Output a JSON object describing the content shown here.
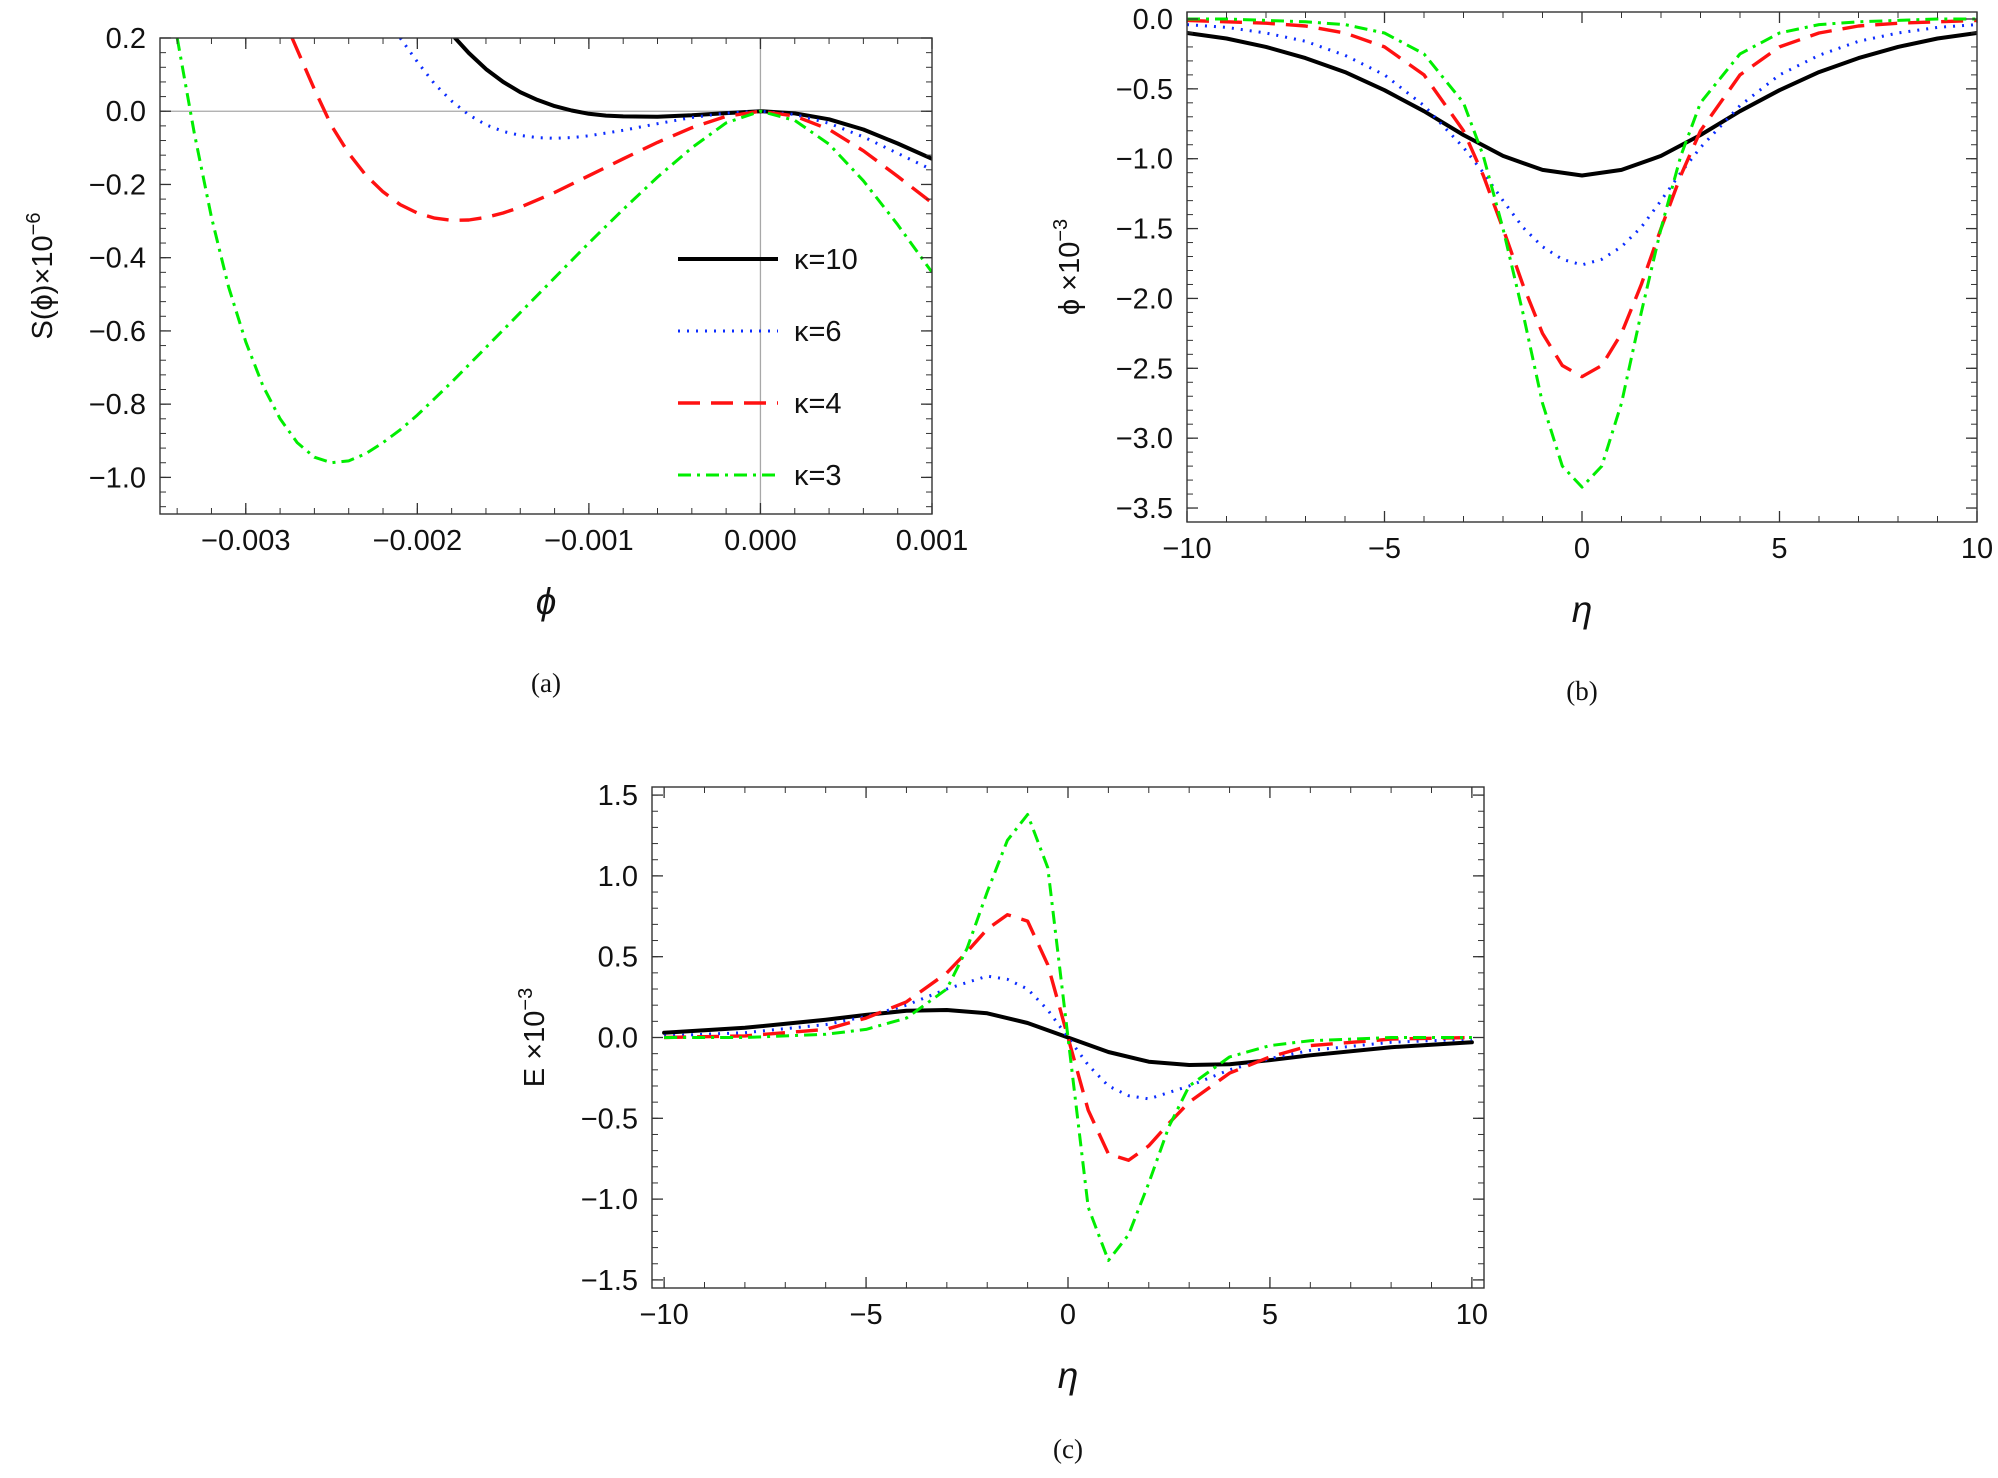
{
  "styles": {
    "10": {
      "color": "#000000",
      "dash": "",
      "width": 4
    },
    "6": {
      "color": "#0b2cff",
      "dash": "2 7",
      "width": 3
    },
    "4": {
      "color": "#ff1111",
      "dash": "22 11",
      "width": 3.4
    },
    "3": {
      "color": "#00ee00",
      "dash": "13 6 3 6",
      "width": 3
    }
  },
  "chart_data": [
    {
      "id": "a",
      "type": "line",
      "caption": "(a)",
      "xlabel": "ϕ",
      "ylabel": "S(ϕ)×10",
      "ylabel_exp": "−6",
      "xlim": [
        -0.0035,
        0.001
      ],
      "ylim": [
        -1.1,
        0.2
      ],
      "xticks": [
        -0.003,
        -0.002,
        -0.001,
        0.0,
        0.001
      ],
      "xtick_labels": [
        "−0.003",
        "−0.002",
        "−0.001",
        "0.000",
        "0.001"
      ],
      "yticks": [
        0.2,
        0.0,
        -0.2,
        -0.4,
        -0.6,
        -0.8,
        -1.0
      ],
      "ytick_labels": [
        "0.2",
        "0.0",
        "−0.2",
        "−0.4",
        "−0.6",
        "−0.8",
        "−1.0"
      ],
      "zero_lines": true,
      "legend": [
        {
          "key": "10",
          "label": "κ=10"
        },
        {
          "key": "6",
          "label": "κ=6"
        },
        {
          "key": "4",
          "label": "κ=4"
        },
        {
          "key": "3",
          "label": "κ=3"
        }
      ],
      "series": [
        {
          "name": "κ=10",
          "key": "10",
          "x": [
            -0.00178,
            -0.0017,
            -0.0016,
            -0.0015,
            -0.0014,
            -0.0013,
            -0.0012,
            -0.0011,
            -0.001,
            -0.0009,
            -0.0008,
            -0.0006,
            -0.0004,
            -0.0002,
            0.0,
            0.0002,
            0.0004,
            0.0006,
            0.0008,
            0.001
          ],
          "y": [
            0.2,
            0.159,
            0.115,
            0.08,
            0.052,
            0.031,
            0.014,
            0.002,
            -0.007,
            -0.012,
            -0.014,
            -0.015,
            -0.011,
            -0.005,
            0.0,
            -0.006,
            -0.022,
            -0.05,
            -0.088,
            -0.13
          ]
        },
        {
          "name": "κ=6",
          "key": "6",
          "x": [
            -0.0021,
            -0.002,
            -0.0019,
            -0.0018,
            -0.0017,
            -0.0016,
            -0.0015,
            -0.0014,
            -0.0013,
            -0.0012,
            -0.0011,
            -0.001,
            -0.0008,
            -0.0006,
            -0.0004,
            -0.0002,
            0.0,
            0.0002,
            0.0004,
            0.0006,
            0.0008,
            0.001
          ],
          "y": [
            0.2,
            0.135,
            0.075,
            0.028,
            -0.01,
            -0.037,
            -0.055,
            -0.066,
            -0.072,
            -0.074,
            -0.072,
            -0.067,
            -0.052,
            -0.034,
            -0.017,
            -0.005,
            0.0,
            -0.009,
            -0.033,
            -0.07,
            -0.115,
            -0.16
          ]
        },
        {
          "name": "κ=4",
          "key": "4",
          "x": [
            -0.00273,
            -0.0026,
            -0.0025,
            -0.0024,
            -0.0023,
            -0.0022,
            -0.0021,
            -0.002,
            -0.0019,
            -0.0018,
            -0.0017,
            -0.0016,
            -0.0015,
            -0.0014,
            -0.0012,
            -0.001,
            -0.0008,
            -0.0006,
            -0.0004,
            -0.0002,
            0.0,
            0.0002,
            0.0004,
            0.0006,
            0.0008,
            0.001
          ],
          "y": [
            0.2,
            0.06,
            -0.04,
            -0.115,
            -0.175,
            -0.22,
            -0.255,
            -0.278,
            -0.292,
            -0.298,
            -0.297,
            -0.29,
            -0.278,
            -0.262,
            -0.222,
            -0.176,
            -0.13,
            -0.085,
            -0.045,
            -0.014,
            0.0,
            -0.013,
            -0.05,
            -0.108,
            -0.178,
            -0.25
          ]
        },
        {
          "name": "κ=3",
          "key": "3",
          "x": [
            -0.0034,
            -0.0033,
            -0.0032,
            -0.0031,
            -0.003,
            -0.0029,
            -0.0028,
            -0.0027,
            -0.0026,
            -0.0025,
            -0.0024,
            -0.0023,
            -0.0022,
            -0.0021,
            -0.002,
            -0.0019,
            -0.0018,
            -0.0016,
            -0.0014,
            -0.0012,
            -0.001,
            -0.0008,
            -0.0006,
            -0.0004,
            -0.0002,
            0.0,
            0.0002,
            0.0004,
            0.0006,
            0.0008,
            0.001
          ],
          "y": [
            0.2,
            -0.06,
            -0.29,
            -0.48,
            -0.63,
            -0.75,
            -0.84,
            -0.905,
            -0.945,
            -0.96,
            -0.955,
            -0.935,
            -0.905,
            -0.87,
            -0.83,
            -0.785,
            -0.74,
            -0.645,
            -0.55,
            -0.455,
            -0.36,
            -0.268,
            -0.18,
            -0.1,
            -0.032,
            0.0,
            -0.025,
            -0.09,
            -0.19,
            -0.31,
            -0.44
          ]
        }
      ]
    },
    {
      "id": "b",
      "type": "line",
      "caption": "(b)",
      "xlabel": "η",
      "ylabel": "ϕ ×10",
      "ylabel_exp": "−3",
      "xlim": [
        -10,
        10
      ],
      "ylim": [
        -3.6,
        0.05
      ],
      "xticks": [
        -10,
        -5,
        0,
        5,
        10
      ],
      "xtick_labels": [
        "−10",
        "−5",
        "0",
        "5",
        "10"
      ],
      "yticks": [
        0.0,
        -0.5,
        -1.0,
        -1.5,
        -2.0,
        -2.5,
        -3.0,
        -3.5
      ],
      "ytick_labels": [
        "0.0",
        "−0.5",
        "−1.0",
        "−1.5",
        "−2.0",
        "−2.5",
        "−3.0",
        "−3.5"
      ],
      "zero_lines": false,
      "series": [
        {
          "name": "κ=10",
          "key": "10",
          "x": [
            -10,
            -9,
            -8,
            -7,
            -6,
            -5,
            -4,
            -3,
            -2,
            -1,
            0,
            1,
            2,
            3,
            4,
            5,
            6,
            7,
            8,
            9,
            10
          ],
          "y": [
            -0.1,
            -0.14,
            -0.2,
            -0.28,
            -0.38,
            -0.51,
            -0.66,
            -0.83,
            -0.98,
            -1.08,
            -1.12,
            -1.08,
            -0.98,
            -0.83,
            -0.66,
            -0.51,
            -0.38,
            -0.28,
            -0.2,
            -0.14,
            -0.1
          ]
        },
        {
          "name": "κ=6",
          "key": "6",
          "x": [
            -10,
            -9,
            -8,
            -7,
            -6,
            -5,
            -4,
            -3,
            -2.5,
            -2,
            -1.5,
            -1,
            -0.5,
            0,
            0.5,
            1,
            1.5,
            2,
            2.5,
            3,
            4,
            5,
            6,
            7,
            8,
            9,
            10
          ],
          "y": [
            -0.04,
            -0.06,
            -0.1,
            -0.16,
            -0.26,
            -0.4,
            -0.62,
            -0.92,
            -1.1,
            -1.3,
            -1.49,
            -1.63,
            -1.72,
            -1.76,
            -1.72,
            -1.63,
            -1.49,
            -1.3,
            -1.1,
            -0.92,
            -0.62,
            -0.4,
            -0.26,
            -0.16,
            -0.1,
            -0.06,
            -0.04
          ]
        },
        {
          "name": "κ=4",
          "key": "4",
          "x": [
            -10,
            -9,
            -8,
            -7,
            -6,
            -5,
            -4,
            -3,
            -2.5,
            -2,
            -1.5,
            -1,
            -0.5,
            0,
            0.5,
            1,
            1.5,
            2,
            2.5,
            3,
            4,
            5,
            6,
            7,
            8,
            9,
            10
          ],
          "y": [
            -0.01,
            -0.02,
            -0.03,
            -0.05,
            -0.1,
            -0.2,
            -0.4,
            -0.8,
            -1.12,
            -1.5,
            -1.9,
            -2.25,
            -2.48,
            -2.56,
            -2.48,
            -2.25,
            -1.9,
            -1.5,
            -1.12,
            -0.8,
            -0.4,
            -0.2,
            -0.1,
            -0.05,
            -0.03,
            -0.02,
            -0.01
          ]
        },
        {
          "name": "κ=3",
          "key": "3",
          "x": [
            -10,
            -9,
            -8,
            -7,
            -6,
            -5,
            -4,
            -3,
            -2.5,
            -2,
            -1.5,
            -1,
            -0.5,
            0,
            0.5,
            1,
            1.5,
            2,
            2.5,
            3,
            4,
            5,
            6,
            7,
            8,
            9,
            10
          ],
          "y": [
            0.0,
            0.0,
            -0.01,
            -0.02,
            -0.04,
            -0.1,
            -0.25,
            -0.6,
            -0.98,
            -1.5,
            -2.1,
            -2.75,
            -3.2,
            -3.35,
            -3.2,
            -2.75,
            -2.1,
            -1.5,
            -0.98,
            -0.6,
            -0.25,
            -0.1,
            -0.04,
            -0.02,
            -0.01,
            0.0,
            0.0
          ]
        }
      ]
    },
    {
      "id": "c",
      "type": "line",
      "caption": "(c)",
      "xlabel": "η",
      "ylabel": "E ×10",
      "ylabel_exp": "−3",
      "xlim": [
        -10.3,
        10.3
      ],
      "ylim": [
        -1.55,
        1.55
      ],
      "xticks": [
        -10,
        -5,
        0,
        5,
        10
      ],
      "xtick_labels": [
        "−10",
        "−5",
        "0",
        "5",
        "10"
      ],
      "yticks": [
        1.5,
        1.0,
        0.5,
        0.0,
        -0.5,
        -1.0,
        -1.5
      ],
      "ytick_labels": [
        "1.5",
        "1.0",
        "0.5",
        "0.0",
        "−0.5",
        "−1.0",
        "−1.5"
      ],
      "zero_lines": false,
      "series": [
        {
          "name": "κ=10",
          "key": "10",
          "x": [
            -10,
            -8,
            -6,
            -5,
            -4,
            -3,
            -2,
            -1,
            0,
            1,
            2,
            3,
            4,
            5,
            6,
            8,
            10
          ],
          "y": [
            0.03,
            0.06,
            0.11,
            0.14,
            0.165,
            0.17,
            0.15,
            0.09,
            0.0,
            -0.09,
            -0.15,
            -0.17,
            -0.165,
            -0.14,
            -0.11,
            -0.06,
            -0.03
          ]
        },
        {
          "name": "κ=6",
          "key": "6",
          "x": [
            -10,
            -8,
            -6,
            -5,
            -4,
            -3,
            -2,
            -1.5,
            -1,
            -0.5,
            0,
            0.5,
            1,
            1.5,
            2,
            3,
            4,
            5,
            6,
            8,
            10
          ],
          "y": [
            0.01,
            0.03,
            0.08,
            0.13,
            0.2,
            0.3,
            0.38,
            0.36,
            0.3,
            0.17,
            0.0,
            -0.17,
            -0.3,
            -0.36,
            -0.38,
            -0.3,
            -0.2,
            -0.13,
            -0.08,
            -0.03,
            -0.01
          ]
        },
        {
          "name": "κ=4",
          "key": "4",
          "x": [
            -10,
            -8,
            -6,
            -5,
            -4,
            -3,
            -2.5,
            -2,
            -1.5,
            -1,
            -0.5,
            0,
            0.5,
            1,
            1.5,
            2,
            2.5,
            3,
            4,
            5,
            6,
            8,
            10
          ],
          "y": [
            0.0,
            0.01,
            0.05,
            0.12,
            0.22,
            0.4,
            0.53,
            0.67,
            0.76,
            0.72,
            0.45,
            0.0,
            -0.45,
            -0.72,
            -0.76,
            -0.67,
            -0.53,
            -0.4,
            -0.22,
            -0.12,
            -0.05,
            -0.01,
            0.0
          ]
        },
        {
          "name": "κ=3",
          "key": "3",
          "x": [
            -10,
            -8,
            -6,
            -5,
            -4,
            -3,
            -2.5,
            -2,
            -1.5,
            -1,
            -0.5,
            0,
            0.5,
            1,
            1.5,
            2,
            2.5,
            3,
            4,
            5,
            6,
            8,
            10
          ],
          "y": [
            0.0,
            0.0,
            0.02,
            0.05,
            0.12,
            0.3,
            0.55,
            0.9,
            1.22,
            1.38,
            1.05,
            0.0,
            -1.05,
            -1.38,
            -1.22,
            -0.9,
            -0.55,
            -0.3,
            -0.12,
            -0.05,
            -0.02,
            0.0,
            0.0
          ]
        }
      ]
    }
  ]
}
